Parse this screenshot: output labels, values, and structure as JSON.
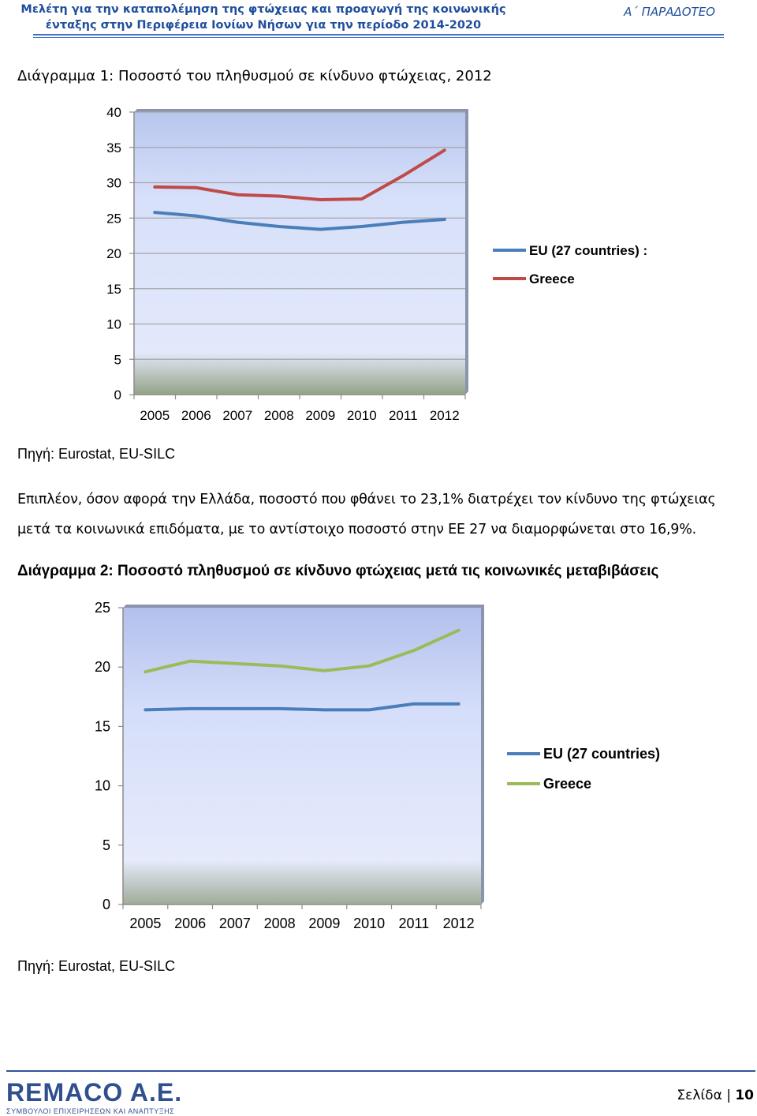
{
  "header": {
    "title_line1": "Μελέτη για την καταπολέμηση της φτώχειας και προαγωγή της κοινωνικής",
    "title_line2": "ένταξης στην Περιφέρεια Ιονίων Νήσων για την περίοδο 2014-2020",
    "deliverable": "Α΄ ΠΑΡΑΔΟΤΕΟ"
  },
  "chart1": {
    "caption": "Διάγραμμα 1: Ποσοστό του πληθυσμού σε κίνδυνο φτώχειας, 2012",
    "source": "Πηγή: Eurostat, EU-SILC"
  },
  "paragraph": {
    "line1": "Επιπλέον, όσον αφορά την Ελλάδα, ποσοστό που φθάνει το 23,1% διατρέχει τον κίνδυνο της φτώχειας",
    "line2": "μετά τα κοινωνικά επιδόματα, με το αντίστοιχο ποσοστό στην ΕΕ 27 να διαμορφώνεται στο 16,9%."
  },
  "chart2": {
    "caption": "Διάγραμμα 2: Ποσοστό πληθυσμού σε κίνδυνο φτώχειας μετά τις κοινωνικές μεταβιβάσεις",
    "source": "Πηγή: Eurostat, EU-SILC"
  },
  "chart_data": [
    {
      "type": "line",
      "title": "",
      "x": [
        "2005",
        "2006",
        "2007",
        "2008",
        "2009",
        "2010",
        "2011",
        "2012"
      ],
      "ylim": [
        0,
        40
      ],
      "yticks": [
        0,
        5,
        10,
        15,
        20,
        25,
        30,
        35,
        40
      ],
      "grid": true,
      "legend": "right",
      "series": [
        {
          "name": "EU (27 countries) :",
          "color": "#4a7ebb",
          "values": [
            25.8,
            25.3,
            24.4,
            23.8,
            23.4,
            23.8,
            24.4,
            24.8
          ]
        },
        {
          "name": "Greece",
          "color": "#be4b48",
          "values": [
            29.4,
            29.3,
            28.3,
            28.1,
            27.6,
            27.7,
            31.0,
            34.6
          ]
        }
      ]
    },
    {
      "type": "line",
      "title": "",
      "x": [
        "2005",
        "2006",
        "2007",
        "2008",
        "2009",
        "2010",
        "2011",
        "2012"
      ],
      "ylim": [
        0,
        25
      ],
      "yticks": [
        0,
        5,
        10,
        15,
        20,
        25
      ],
      "grid": false,
      "legend": "right",
      "series": [
        {
          "name": "EU (27 countries)",
          "color": "#4a7ebb",
          "values": [
            16.4,
            16.5,
            16.5,
            16.5,
            16.4,
            16.4,
            16.9,
            16.9
          ]
        },
        {
          "name": "Greece",
          "color": "#9bbb59",
          "values": [
            19.6,
            20.5,
            20.3,
            20.1,
            19.7,
            20.1,
            21.4,
            23.1
          ]
        }
      ]
    }
  ],
  "footer": {
    "logo_text": "REMACO A.E.",
    "logo_subtitle": "ΣΥΜΒΟΥΛΟΙ ΕΠΙΧΕΙΡΗΣΕΩΝ ΚΑΙ ΑΝΑΠΤΥΞΗΣ",
    "page_label": "Σελίδα",
    "page_number": "10"
  }
}
